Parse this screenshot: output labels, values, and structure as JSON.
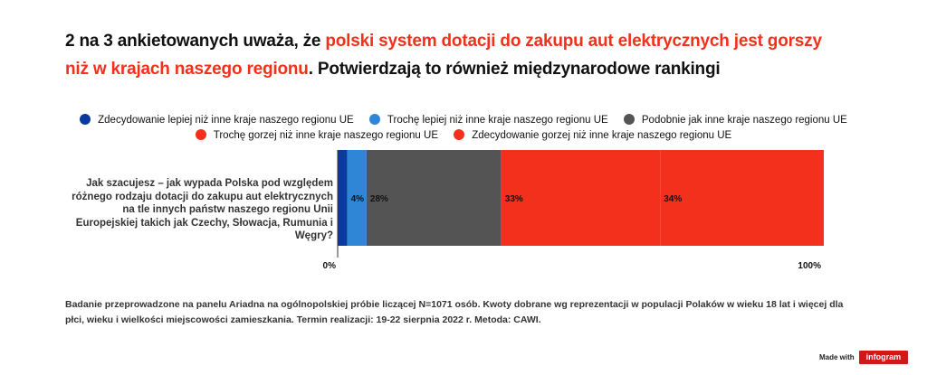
{
  "title": {
    "part1": "2 na 3 ankietowanych uważa, że ",
    "highlight": "polski system dotacji do zakupu aut elektrycznych jest gorszy niż w krajach naszego regionu",
    "part2": ". Potwierdzają to również międzynarodowe rankingi"
  },
  "chart_data": {
    "type": "bar",
    "orientation": "horizontal",
    "stacked": true,
    "categories": [
      "Jak szacujesz – jak wypada Polska pod względem różnego rodzaju dotacji do zakupu aut elektrycznych na tle innych państw naszego regionu Unii Europejskiej takich jak Czechy, Słowacja, Rumunia i Węgry?"
    ],
    "series": [
      {
        "name": "Zdecydowanie lepiej niż inne kraje naszego regionu UE",
        "values": [
          2
        ],
        "color": "#0a3a9e",
        "label": ""
      },
      {
        "name": "Trochę lepiej niż inne kraje naszego regionu UE",
        "values": [
          4
        ],
        "color": "#2f86d6",
        "label": "4%"
      },
      {
        "name": "Podobnie jak inne kraje naszego regionu UE",
        "values": [
          28
        ],
        "color": "#545454",
        "label": "28%"
      },
      {
        "name": "Trochę gorzej niż inne kraje naszego regionu UE",
        "values": [
          33
        ],
        "color": "#f2301c",
        "label": "33%"
      },
      {
        "name": "Zdecydowanie gorzej niż inne kraje naszego regionu UE",
        "values": [
          34
        ],
        "color": "#f2301c",
        "label": "34%"
      }
    ],
    "axis": {
      "min_label": "0%",
      "max_label": "100%"
    },
    "xlim": [
      0,
      101
    ],
    "legend_position": "top"
  },
  "footnote": "Badanie przeprowadzone na panelu Ariadna na ogólnopolskiej próbie liczącej N=1071 osób. Kwoty dobrane wg reprezentacji w populacji Polaków w wieku 18 lat i więcej dla płci, wieku i wielkości miejscowości zamieszkania. Termin realizacji:  19-22 sierpnia 2022 r. Metoda: CAWI.",
  "branding": {
    "made_with": "Made with",
    "name": "infogram"
  }
}
